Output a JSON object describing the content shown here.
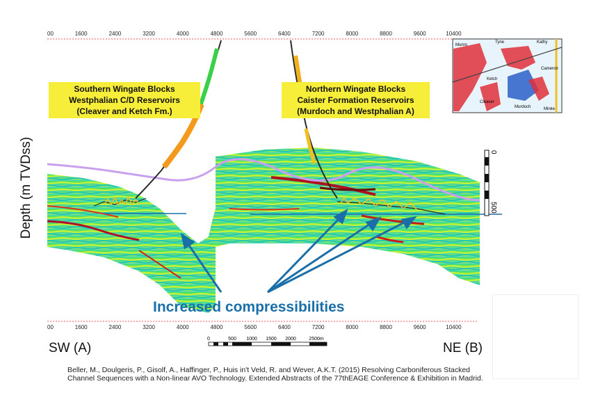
{
  "axis": {
    "ylabel": "Depth (m TVDss)",
    "x_ticks": [
      "00",
      "1600",
      "2400",
      "3200",
      "4000",
      "4800",
      "5600",
      "6400",
      "7200",
      "8000",
      "8800",
      "9600",
      "10400"
    ]
  },
  "labels": {
    "southern": [
      "Southern Wingate Blocks",
      "Westphalian C/D Reservoirs",
      "(Cleaver and Ketch Fm.)"
    ],
    "northern": [
      "Northern Wingate Blocks",
      "Caister Formation Reservoirs",
      "(Murdoch and Westphalian A)"
    ],
    "callout": "Increased compressibilities",
    "sw": "SW (A)",
    "ne": "NE (B)"
  },
  "scalebar": {
    "ticks": [
      "0",
      "500",
      "1000",
      "1500",
      "2000",
      "2500m"
    ]
  },
  "depth_scale": {
    "ticks": [
      "0",
      "500"
    ]
  },
  "inset_map": {
    "labels": [
      "Tyne",
      "Kathy",
      "Munro",
      "Cameron",
      "Minke",
      "Ketch",
      "Cleaver",
      "Murdoch"
    ]
  },
  "citation": [
    "Beller, M., Doulgeris, P., Gisolf, A., Haffinger, P., Huis in't Veld, R. and Wever, A.K.T. (2015) Resolving Carboniferous Stacked",
    "Channel Sequences with a Non-linear AVO Technology. Extended Abstracts of the 77thEAGE Conference & Exhibition in Madrid."
  ],
  "colors": {
    "callout": "#1a6fa8",
    "label_bg": "#f7ee3a",
    "horizon": "#c9a0f0",
    "seismic_green": "#3ddc6a"
  }
}
